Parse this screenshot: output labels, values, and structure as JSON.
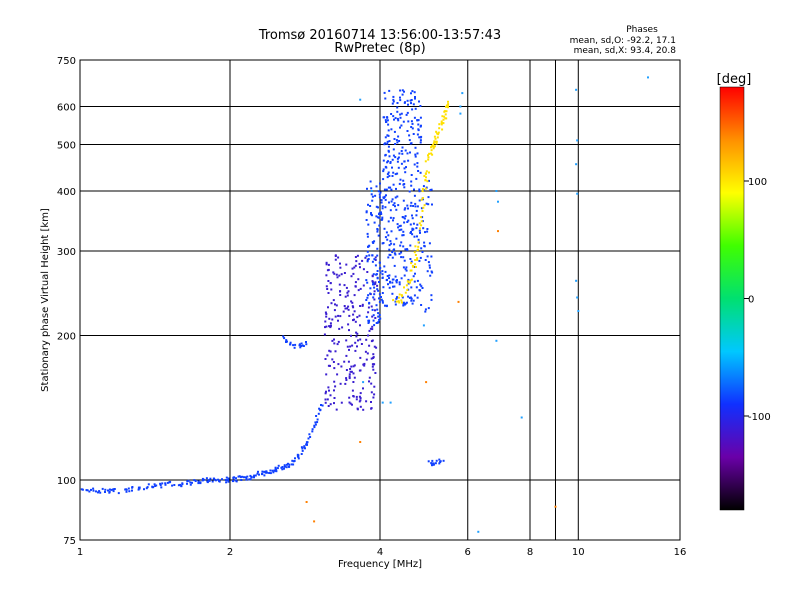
{
  "chart_data": {
    "type": "scatter",
    "title": "Tromsø 20160714 13:56:00-13:57:43",
    "subtitle": "RwPretec (8p)",
    "stats": {
      "header": "Phases",
      "line_o": "mean, sd,O: -92.2, 17.1",
      "line_x": "mean, sd,X:  93.4, 20.8"
    },
    "xlabel": "Frequency [MHz]",
    "ylabel": "Stationary phase Virtual Height [km]",
    "x_scale": "log",
    "y_scale": "log",
    "xlim": [
      1,
      16
    ],
    "ylim": [
      75,
      750
    ],
    "x_ticks": [
      {
        "value": 1,
        "label": "1"
      },
      {
        "value": 2,
        "label": "2"
      },
      {
        "value": 4,
        "label": "4"
      },
      {
        "value": 6,
        "label": "6"
      },
      {
        "value": 8,
        "label": "8"
      },
      {
        "value": 10,
        "label": "10"
      },
      {
        "value": 16,
        "label": "16"
      }
    ],
    "x_minor": [
      9
    ],
    "y_ticks": [
      {
        "value": 75,
        "label": "75"
      },
      {
        "value": 100,
        "label": "100"
      },
      {
        "value": 200,
        "label": "200"
      },
      {
        "value": 300,
        "label": "300"
      },
      {
        "value": 400,
        "label": "400"
      },
      {
        "value": 500,
        "label": "500"
      },
      {
        "value": 600,
        "label": "600"
      },
      {
        "value": 750,
        "label": "750"
      }
    ],
    "grid": true,
    "colorbar": {
      "label": "[deg]",
      "range": [
        -180,
        180
      ],
      "ticks": [
        {
          "value": 100,
          "label": "100"
        },
        {
          "value": 0,
          "label": "0"
        },
        {
          "value": -100,
          "label": "-100"
        }
      ],
      "colors": [
        "#000000",
        "#6a00a8",
        "#1030ff",
        "#00c8ff",
        "#00e070",
        "#40ff00",
        "#ffff00",
        "#ff9000",
        "#ff0000"
      ]
    },
    "series": [
      {
        "trace": [
          [
            1.0,
            95
          ],
          [
            1.05,
            95
          ],
          [
            1.1,
            95
          ],
          [
            1.15,
            95
          ],
          [
            1.2,
            95
          ],
          [
            1.26,
            96
          ],
          [
            1.32,
            96
          ],
          [
            1.38,
            97
          ],
          [
            1.44,
            97
          ],
          [
            1.5,
            98
          ],
          [
            1.56,
            98
          ],
          [
            1.62,
            98
          ],
          [
            1.68,
            99
          ],
          [
            1.74,
            99
          ],
          [
            1.8,
            100
          ],
          [
            1.86,
            100
          ],
          [
            1.92,
            100
          ],
          [
            1.98,
            100
          ],
          [
            2.04,
            100
          ],
          [
            2.1,
            101
          ],
          [
            2.16,
            101
          ],
          [
            2.22,
            102
          ],
          [
            2.28,
            103
          ],
          [
            2.34,
            103
          ],
          [
            2.4,
            104
          ],
          [
            2.46,
            105
          ],
          [
            2.52,
            106
          ],
          [
            2.58,
            107
          ],
          [
            2.64,
            108
          ],
          [
            2.7,
            110
          ],
          [
            2.76,
            113
          ],
          [
            2.82,
            117
          ],
          [
            2.88,
            122
          ],
          [
            2.94,
            128
          ],
          [
            3.0,
            135
          ],
          [
            3.06,
            143
          ]
        ],
        "color": "#1040ff",
        "jitter": 0.012,
        "n": 6
      },
      {
        "trace": [
          [
            2.55,
            200
          ],
          [
            2.62,
            193
          ],
          [
            2.7,
            190
          ],
          [
            2.78,
            190
          ],
          [
            2.86,
            193
          ]
        ],
        "color": "#1040ff",
        "jitter": 0.01,
        "n": 5
      },
      {
        "box": [
          [
            3.1,
            3.95
          ],
          [
            140,
            300
          ]
        ],
        "color": "#3a1ed0",
        "n": 260
      },
      {
        "box": [
          [
            3.75,
            4.05
          ],
          [
            210,
            420
          ]
        ],
        "color": "#1040ff",
        "n": 120
      },
      {
        "box": [
          [
            4.05,
            4.85
          ],
          [
            230,
            650
          ]
        ],
        "color": "#1040ff",
        "n": 360
      },
      {
        "box": [
          [
            4.85,
            5.1
          ],
          [
            220,
            420
          ]
        ],
        "color": "#1040ff",
        "n": 40
      },
      {
        "trace": [
          [
            4.25,
            235
          ],
          [
            4.45,
            240
          ],
          [
            4.6,
            260
          ],
          [
            4.7,
            290
          ],
          [
            4.8,
            330
          ],
          [
            4.88,
            380
          ],
          [
            4.95,
            430
          ],
          [
            5.02,
            470
          ],
          [
            5.1,
            500
          ],
          [
            5.2,
            520
          ],
          [
            5.3,
            550
          ],
          [
            5.4,
            580
          ],
          [
            5.45,
            610
          ]
        ],
        "color": "#ffe000",
        "jitter": 0.02,
        "n": 9
      },
      {
        "trace": [
          [
            5.0,
            110
          ],
          [
            5.1,
            108
          ],
          [
            5.2,
            109
          ],
          [
            5.35,
            110
          ]
        ],
        "color": "#1040ff",
        "jitter": 0.01,
        "n": 5
      },
      {
        "points": [
          [
            6.85,
            400
          ],
          [
            6.9,
            380
          ],
          [
            6.85,
            195
          ],
          [
            7.7,
            135
          ],
          [
            9.9,
            650
          ],
          [
            9.95,
            510
          ],
          [
            9.9,
            455
          ],
          [
            9.95,
            395
          ],
          [
            9.9,
            260
          ],
          [
            9.95,
            240
          ],
          [
            10.0,
            225
          ],
          [
            13.8,
            690
          ],
          [
            6.3,
            78
          ],
          [
            5.85,
            640
          ],
          [
            5.8,
            600
          ],
          [
            5.8,
            580
          ],
          [
            3.7,
            160
          ],
          [
            4.05,
            145
          ],
          [
            4.2,
            145
          ],
          [
            3.85,
            400
          ],
          [
            3.65,
            620
          ],
          [
            4.9,
            210
          ]
        ],
        "color": "#20a0ff"
      },
      {
        "points": [
          [
            2.85,
            90
          ],
          [
            2.95,
            82
          ],
          [
            3.65,
            120
          ],
          [
            6.9,
            330
          ],
          [
            9.0,
            88
          ],
          [
            5.75,
            235
          ],
          [
            4.95,
            160
          ]
        ],
        "color": "#ff8000"
      }
    ]
  }
}
